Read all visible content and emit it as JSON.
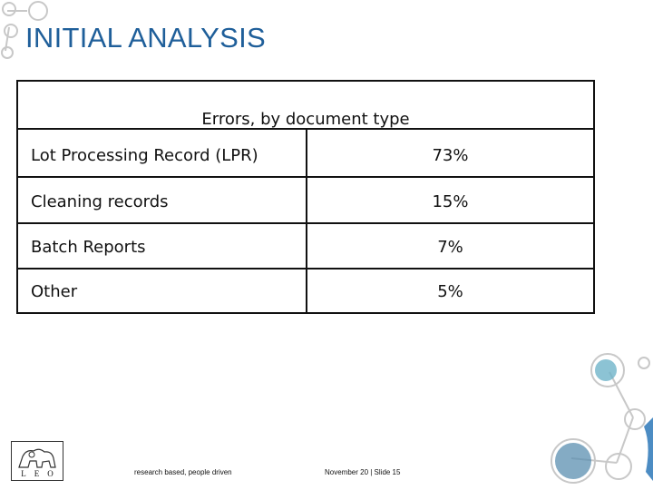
{
  "slide": {
    "title": "INITIAL ANALYSIS"
  },
  "table": {
    "caption": "Errors, by document type",
    "rows": [
      {
        "label": "Lot Processing Record (LPR)",
        "value": "73%"
      },
      {
        "label": "Cleaning records",
        "value": "15%"
      },
      {
        "label": "Batch Reports",
        "value": "7%"
      },
      {
        "label": "Other",
        "value": "5%"
      }
    ]
  },
  "footer": {
    "logo_text": "LEO",
    "tagline": "research based, people driven",
    "date_slide": "November 20 | Slide 15"
  },
  "colors": {
    "title": "#1f5f9a",
    "decoration": "#c8c8c8"
  }
}
